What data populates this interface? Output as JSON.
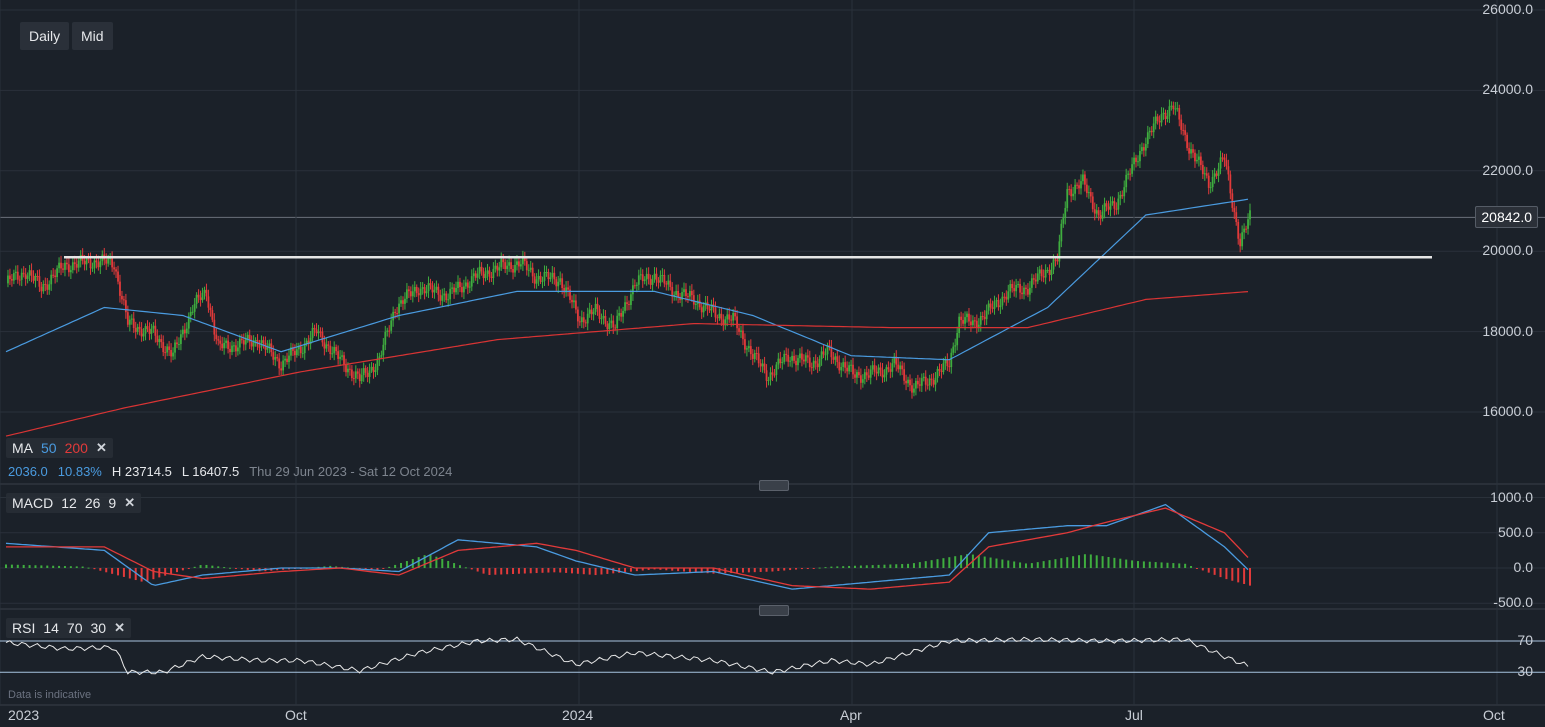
{
  "toolbar": {
    "interval": "Daily",
    "price_type": "Mid"
  },
  "ma_legend": {
    "label": "MA",
    "p1": "50",
    "p2": "200"
  },
  "info": {
    "change": "2036.0",
    "pct": "10.83%",
    "high": "H 23714.5",
    "low": "L 16407.5",
    "range": "Thu 29 Jun 2023 - Sat 12 Oct 2024"
  },
  "macd_legend": {
    "label": "MACD",
    "a": "12",
    "b": "26",
    "c": "9"
  },
  "rsi_legend": {
    "label": "RSI",
    "a": "14",
    "b": "70",
    "c": "30"
  },
  "last_price": "20842.0",
  "note": "Data is indicative",
  "colors": {
    "bg": "#1b2129",
    "up": "#3fae3f",
    "down": "#e23a3a",
    "ma50": "#4a9be0",
    "ma200": "#d93434",
    "macd": "#4a9be0",
    "signal": "#e23a3a",
    "rsi": "#e8e8e8",
    "support": "#e6e6e6"
  },
  "chart_data": [
    {
      "type": "candlestick",
      "title": "",
      "x_range": [
        "2023-06-29",
        "2024-10-12"
      ],
      "x_ticks": [
        "2023",
        "Oct",
        "2024",
        "Apr",
        "Jul",
        "Oct"
      ],
      "y_ticks": [
        "16000.0",
        "18000.0",
        "20000.0",
        "22000.0",
        "24000.0",
        "26000.0"
      ],
      "ylim": [
        14700,
        26200
      ],
      "high": 23714.5,
      "low": 16407.5,
      "last": 20842.0,
      "support_level": 19850,
      "close_path": [
        [
          0,
          19200
        ],
        [
          10,
          19500
        ],
        [
          18,
          19100
        ],
        [
          30,
          19650
        ],
        [
          45,
          19750
        ],
        [
          55,
          19700
        ],
        [
          62,
          18200
        ],
        [
          75,
          17950
        ],
        [
          85,
          17400
        ],
        [
          95,
          18600
        ],
        [
          102,
          19000
        ],
        [
          108,
          17600
        ],
        [
          120,
          17700
        ],
        [
          128,
          17800
        ],
        [
          140,
          17200
        ],
        [
          150,
          17600
        ],
        [
          158,
          18000
        ],
        [
          168,
          17400
        ],
        [
          180,
          16800
        ],
        [
          190,
          17300
        ],
        [
          198,
          18600
        ],
        [
          210,
          19100
        ],
        [
          225,
          18900
        ],
        [
          240,
          19400
        ],
        [
          255,
          19650
        ],
        [
          262,
          19700
        ],
        [
          270,
          19350
        ],
        [
          282,
          19300
        ],
        [
          292,
          18300
        ],
        [
          300,
          18500
        ],
        [
          310,
          18100
        ],
        [
          320,
          19200
        ],
        [
          330,
          19400
        ],
        [
          340,
          19000
        ],
        [
          350,
          18800
        ],
        [
          362,
          18400
        ],
        [
          370,
          18300
        ],
        [
          380,
          17400
        ],
        [
          388,
          16900
        ],
        [
          398,
          17400
        ],
        [
          410,
          17200
        ],
        [
          418,
          17500
        ],
        [
          432,
          16900
        ],
        [
          445,
          17000
        ],
        [
          452,
          17200
        ],
        [
          462,
          16600
        ],
        [
          470,
          16800
        ],
        [
          480,
          17200
        ],
        [
          485,
          18300
        ],
        [
          492,
          18200
        ],
        [
          500,
          18500
        ],
        [
          510,
          19000
        ],
        [
          520,
          19100
        ],
        [
          530,
          19550
        ],
        [
          535,
          19800
        ],
        [
          540,
          21500
        ],
        [
          548,
          21700
        ],
        [
          556,
          20900
        ],
        [
          565,
          21200
        ],
        [
          578,
          22600
        ],
        [
          588,
          23400
        ],
        [
          594,
          23600
        ],
        [
          602,
          22600
        ],
        [
          612,
          21700
        ],
        [
          620,
          22300
        ],
        [
          628,
          20200
        ],
        [
          633,
          20842
        ]
      ],
      "ohlc_series": [
        {
          "name": "MA 50",
          "values": [
            [
              0,
              17500
            ],
            [
              50,
              18600
            ],
            [
              90,
              18400
            ],
            [
              140,
              17500
            ],
            [
              200,
              18400
            ],
            [
              260,
              19000
            ],
            [
              330,
              19000
            ],
            [
              380,
              18400
            ],
            [
              430,
              17400
            ],
            [
              480,
              17300
            ],
            [
              530,
              18600
            ],
            [
              580,
              20900
            ],
            [
              633,
              21300
            ]
          ]
        },
        {
          "name": "MA 200",
          "values": [
            [
              0,
              15400
            ],
            [
              60,
              16100
            ],
            [
              150,
              17000
            ],
            [
              250,
              17800
            ],
            [
              350,
              18200
            ],
            [
              450,
              18100
            ],
            [
              520,
              18100
            ],
            [
              580,
              18800
            ],
            [
              633,
              19000
            ]
          ]
        }
      ]
    },
    {
      "type": "line",
      "title": "",
      "y_ticks": [
        "1000.0",
        "500.0",
        "0.0",
        "-500.0"
      ],
      "ylim": [
        -550,
        1050
      ],
      "series": [
        {
          "name": "MACD",
          "values": [
            [
              0,
              350
            ],
            [
              50,
              250
            ],
            [
              75,
              -250
            ],
            [
              100,
              -100
            ],
            [
              140,
              0
            ],
            [
              170,
              0
            ],
            [
              200,
              -50
            ],
            [
              230,
              400
            ],
            [
              270,
              300
            ],
            [
              290,
              100
            ],
            [
              320,
              -100
            ],
            [
              360,
              -50
            ],
            [
              400,
              -300
            ],
            [
              440,
              -200
            ],
            [
              480,
              -100
            ],
            [
              500,
              500
            ],
            [
              540,
              600
            ],
            [
              560,
              600
            ],
            [
              590,
              900
            ],
            [
              620,
              300
            ],
            [
              633,
              -50
            ]
          ]
        },
        {
          "name": "Signal",
          "values": [
            [
              0,
              300
            ],
            [
              50,
              300
            ],
            [
              75,
              -50
            ],
            [
              100,
              -150
            ],
            [
              140,
              -50
            ],
            [
              170,
              0
            ],
            [
              200,
              -100
            ],
            [
              230,
              250
            ],
            [
              270,
              350
            ],
            [
              290,
              250
            ],
            [
              320,
              0
            ],
            [
              360,
              0
            ],
            [
              400,
              -250
            ],
            [
              440,
              -300
            ],
            [
              480,
              -200
            ],
            [
              500,
              300
            ],
            [
              540,
              500
            ],
            [
              560,
              650
            ],
            [
              590,
              850
            ],
            [
              620,
              500
            ],
            [
              633,
              120
            ]
          ]
        }
      ],
      "histogram": [
        [
          0,
          50
        ],
        [
          40,
          20
        ],
        [
          70,
          -200
        ],
        [
          100,
          50
        ],
        [
          130,
          -50
        ],
        [
          165,
          30
        ],
        [
          190,
          -30
        ],
        [
          215,
          200
        ],
        [
          245,
          -100
        ],
        [
          280,
          -60
        ],
        [
          300,
          -100
        ],
        [
          330,
          -20
        ],
        [
          360,
          -80
        ],
        [
          390,
          -50
        ],
        [
          420,
          20
        ],
        [
          460,
          60
        ],
        [
          490,
          200
        ],
        [
          520,
          60
        ],
        [
          550,
          200
        ],
        [
          575,
          100
        ],
        [
          600,
          60
        ],
        [
          620,
          -150
        ],
        [
          633,
          -250
        ]
      ]
    },
    {
      "type": "line",
      "title": "",
      "y_ticks": [
        "70",
        "30"
      ],
      "ylim": [
        10,
        80
      ],
      "levels": [
        70,
        30
      ],
      "series": [
        {
          "name": "RSI",
          "values": [
            [
              0,
              68
            ],
            [
              30,
              60
            ],
            [
              55,
              62
            ],
            [
              62,
              30
            ],
            [
              80,
              30
            ],
            [
              100,
              50
            ],
            [
              130,
              45
            ],
            [
              150,
              45
            ],
            [
              180,
              32
            ],
            [
              210,
              55
            ],
            [
              240,
              70
            ],
            [
              260,
              72
            ],
            [
              290,
              40
            ],
            [
              320,
              55
            ],
            [
              360,
              45
            ],
            [
              390,
              30
            ],
            [
              420,
              45
            ],
            [
              440,
              40
            ],
            [
              480,
              70
            ],
            [
              520,
              72
            ],
            [
              560,
              70
            ],
            [
              600,
              72
            ],
            [
              620,
              50
            ],
            [
              633,
              37
            ]
          ]
        }
      ]
    }
  ]
}
